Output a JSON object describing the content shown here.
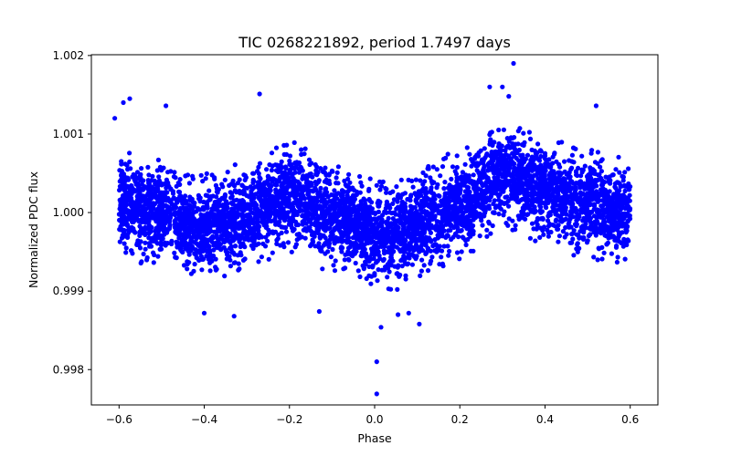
{
  "chart_data": {
    "type": "scatter",
    "title": "TIC 0268221892, period 1.7497 days",
    "xlabel": "Phase",
    "ylabel": "Normalized PDC flux",
    "xlim": [
      -0.665,
      0.665
    ],
    "ylim": [
      0.99755,
      1.00201
    ],
    "xticks": [
      -0.6,
      -0.4,
      -0.2,
      0.0,
      0.2,
      0.4,
      0.6
    ],
    "xtick_labels": [
      "−0.6",
      "−0.4",
      "−0.2",
      "0.0",
      "0.2",
      "0.4",
      "0.6"
    ],
    "yticks": [
      0.998,
      0.999,
      1.0,
      1.001,
      1.002
    ],
    "ytick_labels": [
      "0.998",
      "0.999",
      "1.000",
      "1.001",
      "1.002"
    ],
    "grid": false,
    "series": [
      {
        "name": "PDC flux",
        "color": "#0000ff",
        "marker": "circle",
        "x_range": [
          -0.6,
          0.6
        ],
        "trend": {
          "phase": [
            -0.6,
            -0.5,
            -0.4,
            -0.3,
            -0.2,
            -0.1,
            0.0,
            0.05,
            0.1,
            0.2,
            0.3,
            0.4,
            0.5,
            0.6
          ],
          "flux": [
            1.0001,
            1.0,
            0.9998,
            0.99995,
            1.0002,
            0.99995,
            0.99975,
            0.9997,
            0.99985,
            1.0001,
            1.0005,
            1.0003,
            1.0001,
            1.0
          ]
        },
        "scatter_sigma": 0.00026,
        "outliers": [
          {
            "x": 0.326,
            "y": 1.0019
          },
          {
            "x": 0.3,
            "y": 1.0016
          },
          {
            "x": -0.27,
            "y": 1.00151
          },
          {
            "x": -0.575,
            "y": 1.00145
          },
          {
            "x": -0.59,
            "y": 1.0014
          },
          {
            "x": -0.49,
            "y": 1.00136
          },
          {
            "x": 0.27,
            "y": 1.0016
          },
          {
            "x": 0.52,
            "y": 1.00136
          },
          {
            "x": 0.315,
            "y": 1.00148
          },
          {
            "x": -0.61,
            "y": 1.0012
          },
          {
            "x": 0.015,
            "y": 0.99854
          },
          {
            "x": 0.105,
            "y": 0.99858
          },
          {
            "x": 0.005,
            "y": 0.9981
          },
          {
            "x": 0.005,
            "y": 0.99769
          },
          {
            "x": -0.33,
            "y": 0.99868
          },
          {
            "x": -0.4,
            "y": 0.99872
          },
          {
            "x": -0.13,
            "y": 0.99874
          },
          {
            "x": 0.055,
            "y": 0.9987
          },
          {
            "x": 0.08,
            "y": 0.99872
          }
        ]
      }
    ]
  }
}
